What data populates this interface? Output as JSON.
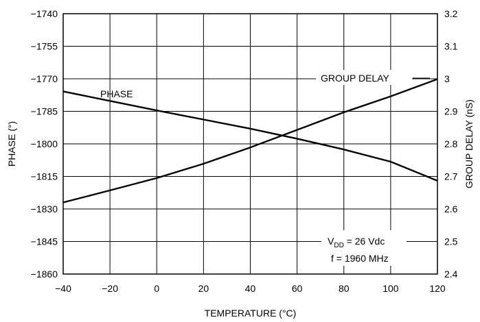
{
  "chart_data": {
    "type": "line",
    "x": [
      -40,
      -20,
      0,
      20,
      40,
      60,
      80,
      100,
      120
    ],
    "xlim": [
      -40,
      120
    ],
    "xticks": [
      "-40",
      "-20",
      "0",
      "20",
      "40",
      "60",
      "80",
      "100",
      "120"
    ],
    "xlabel": "TEMPERATURE (°C)",
    "ylabel_left": "PHASE (°)",
    "ylim_left": [
      -1860,
      -1740
    ],
    "yticks_left": [
      "-1740",
      "-1755",
      "-1770",
      "-1785",
      "-1800",
      "-1815",
      "-1830",
      "-1845",
      "-1860"
    ],
    "ylabel_right": "GROUP DELAY (nS)",
    "ylim_right": [
      2.4,
      3.2
    ],
    "yticks_right": [
      "3.2",
      "3.1",
      "3",
      "2.9",
      "2.8",
      "2.7",
      "2.6",
      "2.5",
      "2.4"
    ],
    "grid": true,
    "series": [
      {
        "name": "PHASE",
        "axis": "left",
        "x": [
          -40,
          -20,
          0,
          20,
          40,
          60,
          80,
          100,
          120
        ],
        "values": [
          -1775.8,
          -1780.2,
          -1784.6,
          -1788.8,
          -1793.0,
          -1797.6,
          -1802.6,
          -1808.2,
          -1817.0
        ]
      },
      {
        "name": "GROUP DELAY",
        "axis": "right",
        "x": [
          -40,
          -20,
          0,
          20,
          40,
          60,
          80,
          100,
          120
        ],
        "values": [
          2.62,
          2.657,
          2.695,
          2.739,
          2.789,
          2.843,
          2.897,
          2.946,
          2.999
        ]
      }
    ],
    "annotation": {
      "vdd_symbol": "V",
      "vdd_sub": "DD",
      "vdd_rest": " = 26 Vdc",
      "freq": "f = 1960 MHz"
    }
  }
}
